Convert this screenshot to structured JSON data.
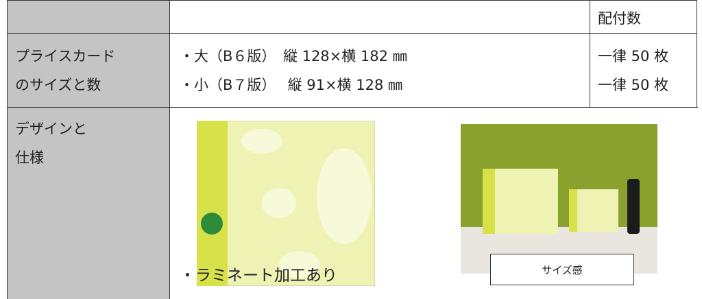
{
  "table": {
    "header": [
      "",
      "",
      "配付数"
    ],
    "rows": [
      {
        "label": [
          "プライスカード",
          "のサイズと数"
        ],
        "sizes": [
          "・大（B６版）　縦 128×横 182 ㎜",
          "・小（B７版）　 縦 91×横 128 ㎜"
        ],
        "counts": [
          "一律 50 枚",
          "一律 50 枚"
        ]
      },
      {
        "label": [
          "デザインと",
          "仕様"
        ],
        "spec": "・ラミネート加工あり",
        "caption": "サイズ感"
      }
    ]
  }
}
